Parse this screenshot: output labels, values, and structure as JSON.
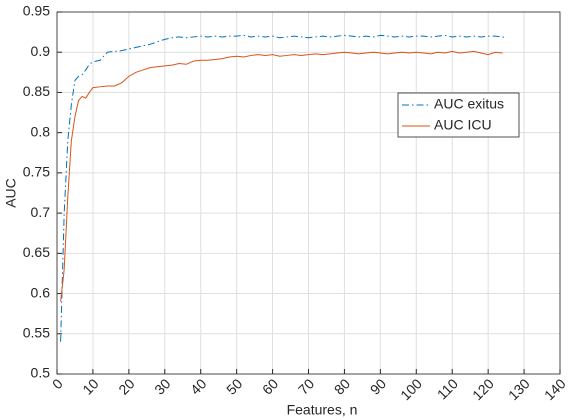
{
  "chart_data": {
    "type": "line",
    "x_label": "Features, n",
    "y_label": "AUC",
    "x": [
      1,
      2,
      3,
      4,
      5,
      6,
      7,
      8,
      9,
      10,
      12,
      14,
      16,
      18,
      20,
      22,
      24,
      26,
      28,
      30,
      32,
      34,
      36,
      38,
      40,
      42,
      44,
      46,
      48,
      50,
      52,
      54,
      56,
      58,
      60,
      62,
      64,
      66,
      68,
      70,
      72,
      74,
      76,
      78,
      80,
      82,
      84,
      86,
      88,
      90,
      92,
      94,
      96,
      98,
      100,
      102,
      104,
      106,
      108,
      110,
      112,
      114,
      116,
      118,
      120,
      122,
      124,
      125
    ],
    "series": [
      {
        "name": "AUC exitus",
        "color": "#0072bd",
        "dash": "dashdot",
        "values": [
          0.54,
          0.7,
          0.79,
          0.835,
          0.865,
          0.87,
          0.872,
          0.878,
          0.885,
          0.888,
          0.89,
          0.9,
          0.901,
          0.902,
          0.904,
          0.906,
          0.908,
          0.91,
          0.913,
          0.916,
          0.918,
          0.919,
          0.918,
          0.919,
          0.92,
          0.919,
          0.92,
          0.919,
          0.92,
          0.92,
          0.921,
          0.919,
          0.92,
          0.919,
          0.92,
          0.918,
          0.919,
          0.92,
          0.919,
          0.918,
          0.919,
          0.92,
          0.919,
          0.92,
          0.921,
          0.92,
          0.919,
          0.92,
          0.919,
          0.921,
          0.92,
          0.919,
          0.92,
          0.919,
          0.92,
          0.92,
          0.919,
          0.92,
          0.921,
          0.919,
          0.92,
          0.919,
          0.92,
          0.919,
          0.92,
          0.92,
          0.919,
          0.918
        ]
      },
      {
        "name": "AUC ICU",
        "color": "#d95319",
        "dash": "solid",
        "values": [
          0.59,
          0.63,
          0.72,
          0.79,
          0.82,
          0.84,
          0.845,
          0.843,
          0.85,
          0.856,
          0.857,
          0.858,
          0.858,
          0.862,
          0.87,
          0.875,
          0.878,
          0.881,
          0.882,
          0.883,
          0.884,
          0.886,
          0.885,
          0.889,
          0.89,
          0.89,
          0.891,
          0.892,
          0.894,
          0.895,
          0.894,
          0.896,
          0.897,
          0.896,
          0.897,
          0.895,
          0.896,
          0.897,
          0.896,
          0.897,
          0.898,
          0.897,
          0.898,
          0.899,
          0.9,
          0.899,
          0.898,
          0.899,
          0.9,
          0.899,
          0.898,
          0.899,
          0.9,
          0.899,
          0.9,
          0.899,
          0.898,
          0.9,
          0.899,
          0.901,
          0.899,
          0.9,
          0.901,
          0.899,
          0.897,
          0.9,
          0.899,
          null
        ]
      }
    ],
    "xlim": [
      0,
      140
    ],
    "xticks": [
      0,
      10,
      20,
      30,
      40,
      50,
      60,
      70,
      80,
      90,
      100,
      110,
      120,
      130,
      140
    ],
    "ylim": [
      0.5,
      0.95
    ],
    "yticks": [
      0.5,
      0.55,
      0.6,
      0.65,
      0.7,
      0.75,
      0.8,
      0.85,
      0.9,
      0.95
    ],
    "grid": true,
    "legend": "east"
  }
}
